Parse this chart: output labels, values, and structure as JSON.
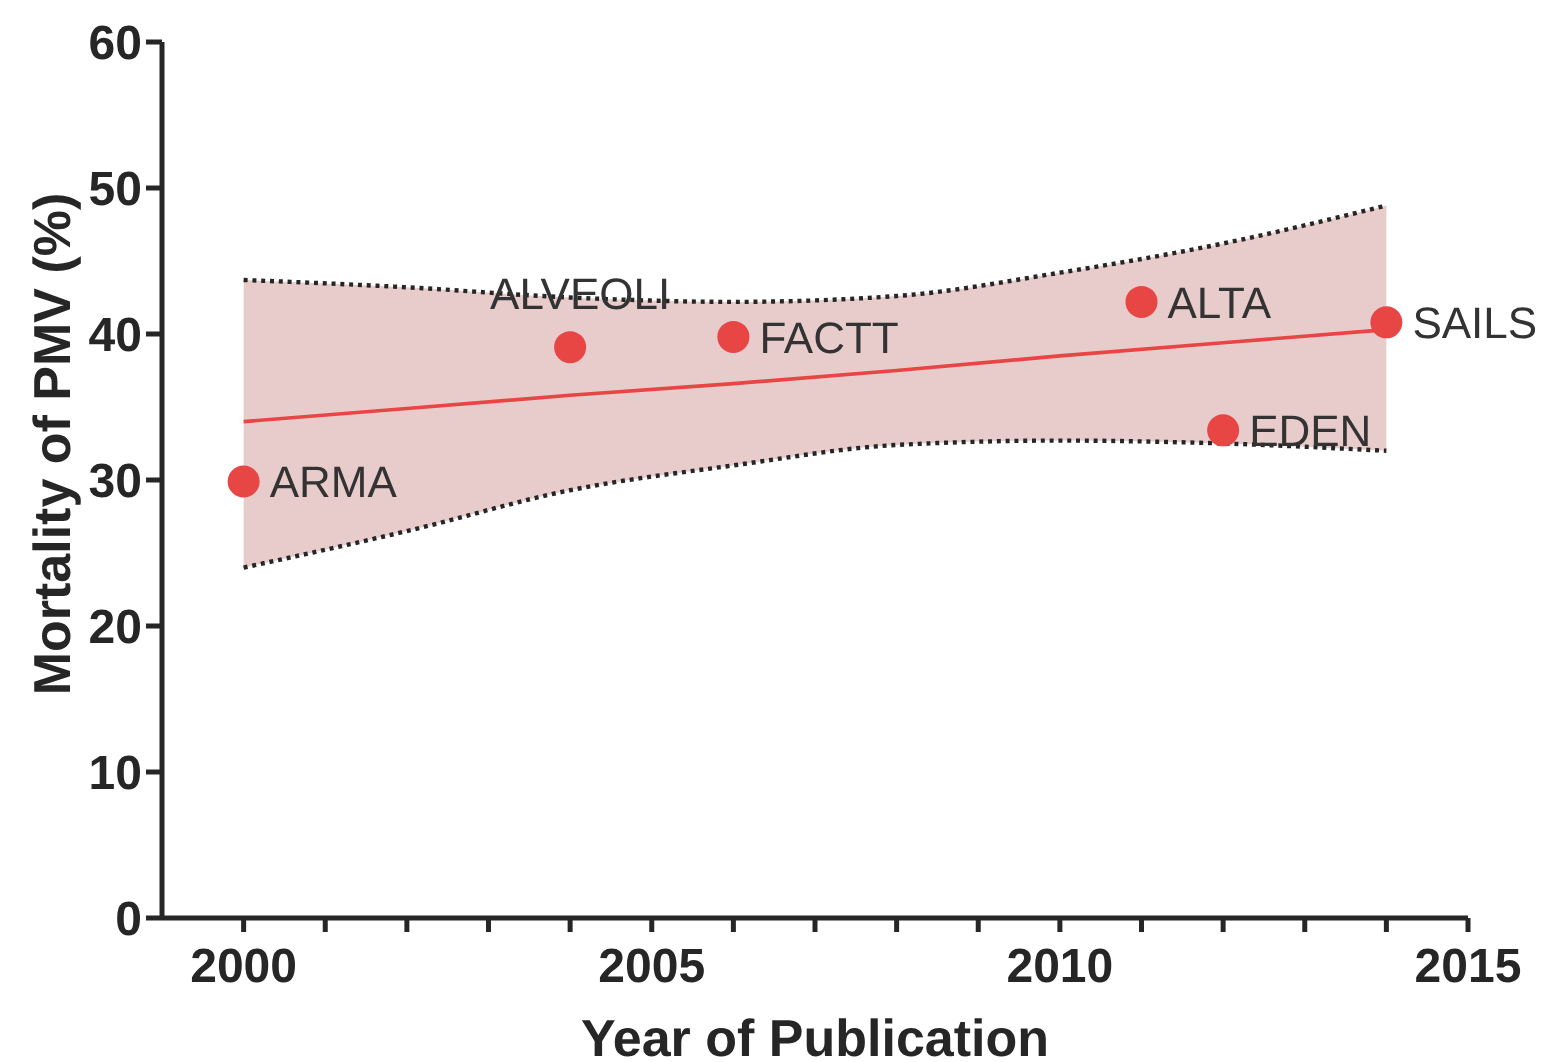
{
  "chart_data": {
    "type": "scatter",
    "xlabel": "Year of Publication",
    "ylabel": "Mortality of PMV (%)",
    "xlim": [
      1999,
      2015
    ],
    "xticks": [
      2000,
      {
        "value": 2001,
        "label": null
      },
      {
        "value": 2002,
        "label": null
      },
      {
        "value": 2003,
        "label": null
      },
      {
        "value": 2004,
        "label": null
      },
      2005,
      {
        "value": 2006,
        "label": null
      },
      {
        "value": 2007,
        "label": null
      },
      {
        "value": 2008,
        "label": null
      },
      {
        "value": 2009,
        "label": null
      },
      2010,
      {
        "value": 2011,
        "label": null
      },
      {
        "value": 2012,
        "label": null
      },
      {
        "value": 2013,
        "label": null
      },
      {
        "value": 2014,
        "label": null
      },
      2015
    ],
    "ylim": [
      0,
      60
    ],
    "yticks": [
      0,
      10,
      20,
      30,
      40,
      50,
      60
    ],
    "series": [
      {
        "type": "line",
        "color": "#e84545",
        "x": [
          2000,
          2002,
          2004,
          2006,
          2008,
          2010,
          2012,
          2014
        ],
        "values": [
          34.0,
          34.9,
          35.8,
          36.6,
          37.5,
          38.5,
          39.4,
          40.3
        ],
        "lower": [
          24.0,
          26.5,
          29.3,
          31.0,
          32.4,
          32.7,
          32.5,
          32.0
        ],
        "upper": [
          43.7,
          43.2,
          42.5,
          42.2,
          42.6,
          44.2,
          46.2,
          48.8
        ]
      },
      {
        "type": "line",
        "color": "#262626",
        "line_style": "dotted",
        "x": [
          2000,
          2002,
          2004,
          2006,
          2008,
          2010,
          2012,
          2014
        ],
        "values": [
          43.7,
          43.2,
          42.5,
          42.2,
          42.6,
          44.2,
          46.2,
          48.8
        ]
      },
      {
        "type": "line",
        "color": "#262626",
        "line_style": "dotted",
        "x": [
          2000,
          2002,
          2004,
          2006,
          2008,
          2010,
          2012,
          2014
        ],
        "values": [
          24.0,
          26.5,
          29.3,
          31.0,
          32.4,
          32.7,
          32.5,
          32.0
        ]
      },
      {
        "color": "#e84545",
        "marker": "circle",
        "x": [
          2000,
          2004,
          2006,
          2011,
          2012,
          2014
        ],
        "values": [
          29.9,
          39.1,
          39.8,
          42.2,
          33.4,
          40.8
        ],
        "value_labels": [
          "ARMA",
          "ALVEOLI",
          "FACTT",
          "ALTA",
          "EDEN",
          "SAILS"
        ]
      }
    ]
  }
}
